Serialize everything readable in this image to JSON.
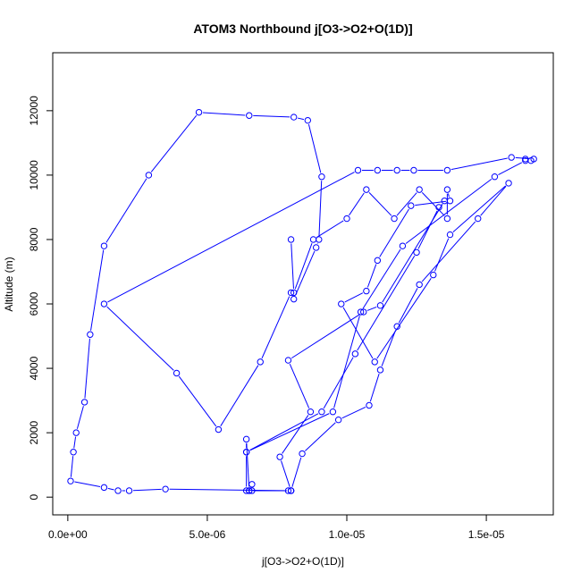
{
  "chart_data": {
    "type": "line",
    "title": "ATOM3 Northbound j[O3->O2+O(1D)]",
    "xlabel": "j[O3->O2+O(1D)]",
    "ylabel": "Altitude (m)",
    "xlim": [
      -5.4e-07,
      1.74e-05
    ],
    "ylim": [
      -550,
      13800
    ],
    "xticks": [
      0,
      5e-06,
      1e-05,
      1.5e-05
    ],
    "xtick_labels": [
      "0.0e+00",
      "5.0e-06",
      "1.0e-05",
      "1.5e-05"
    ],
    "yticks": [
      0,
      2000,
      4000,
      6000,
      8000,
      10000,
      12000
    ],
    "ytick_labels": [
      "0",
      "2000",
      "4000",
      "6000",
      "8000",
      "10000",
      "12000"
    ],
    "grid": false,
    "color": "#0000ff",
    "marker": "open-circle",
    "x": [
      6.5e-06,
      6.4e-06,
      6.4e-06,
      9.1e-06,
      1.03e-05,
      1.25e-05,
      1.33e-05,
      1.35e-05,
      1.12e-05,
      1.06e-05,
      7.9e-06,
      8.7e-06,
      7.6e-06,
      8e-06,
      7.9e-06,
      3.5e-06,
      2.2e-06,
      1.8e-06,
      1.3e-06,
      1e-07,
      2e-07,
      3e-07,
      6e-07,
      8e-07,
      1.3e-06,
      2.9e-06,
      4.7e-06,
      6.5e-06,
      8.1e-06,
      8.6e-06,
      9.1e-06,
      9e-06,
      8.9e-06,
      8.1e-06,
      8e-06,
      6.9e-06,
      5.4e-06,
      3.9e-06,
      1.3e-06,
      1.04e-05,
      1.11e-05,
      1.18e-05,
      1.24e-05,
      1.36e-05,
      1.59e-05,
      1.67e-05,
      1.66e-05,
      1.64e-05,
      1.64e-05,
      1.53e-05,
      1.2e-05,
      1.05e-05,
      9.5e-06,
      6.4e-06,
      6.4e-06,
      6.6e-06,
      6.6e-06,
      6.5e-06,
      8e-06,
      8e-06,
      8.4e-06,
      9.7e-06,
      1.08e-05,
      1.12e-05,
      1.18e-05,
      1.26e-05,
      1.47e-05,
      1.58e-05,
      1.37e-05,
      1.31e-05,
      1.1e-05,
      9.8e-06,
      1.07e-05,
      1.11e-05,
      1.23e-05,
      1.37e-05,
      1.36e-05,
      1.36e-05,
      1.26e-05,
      1.17e-05,
      1.07e-05,
      1e-05,
      8.8e-06,
      8.1e-06,
      8e-06
    ],
    "y": [
      200,
      1800,
      1400,
      2650,
      4450,
      7600,
      9000,
      9200,
      5950,
      5750,
      4250,
      2650,
      1250,
      200,
      200,
      250,
      200,
      200,
      300,
      500,
      1400,
      2000,
      2950,
      5050,
      7800,
      10000,
      11950,
      11850,
      11800,
      11700,
      9950,
      8000,
      7750,
      6150,
      6350,
      4200,
      2100,
      3850,
      6000,
      10150,
      10150,
      10150,
      10150,
      10150,
      10550,
      10500,
      10450,
      10500,
      10450,
      9950,
      7800,
      5750,
      2650,
      1400,
      200,
      200,
      400,
      200,
      200,
      200,
      1350,
      2400,
      2850,
      3950,
      5300,
      6600,
      8650,
      9750,
      8150,
      6900,
      4200,
      6000,
      6400,
      7350,
      9050,
      9200,
      9550,
      8650,
      9550,
      8650,
      9550,
      8650,
      8000,
      6350,
      8000
    ]
  }
}
